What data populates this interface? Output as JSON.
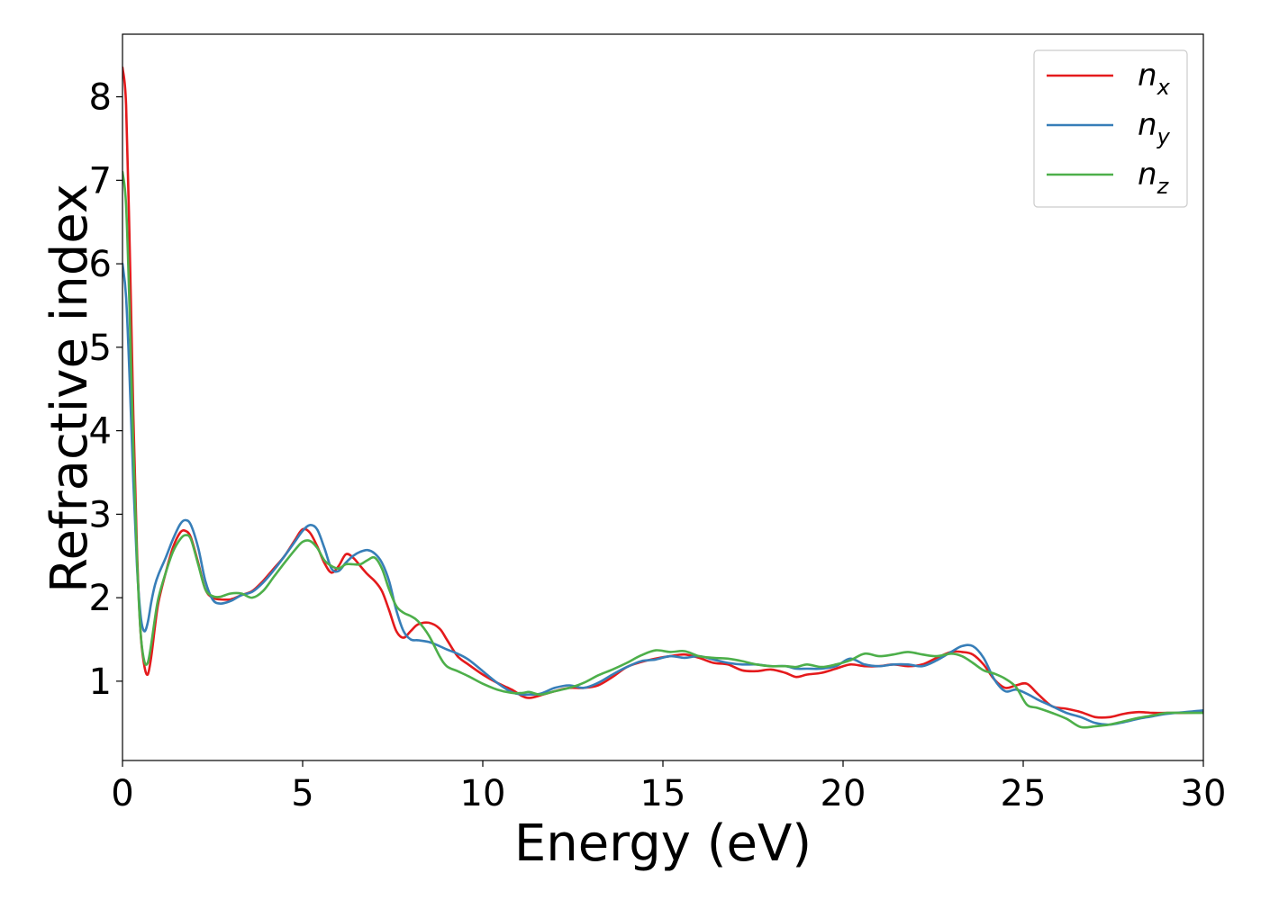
{
  "chart_data": {
    "type": "line",
    "title": "",
    "xlabel": "Energy (eV)",
    "ylabel": "Refractive index",
    "xlim": [
      0,
      30
    ],
    "ylim": [
      0.05,
      8.75
    ],
    "xticks": [
      0,
      5,
      10,
      15,
      20,
      25,
      30
    ],
    "yticks": [
      1,
      2,
      3,
      4,
      5,
      6,
      7,
      8
    ],
    "grid": false,
    "legend_position": "top-right",
    "series": [
      {
        "name": "n",
        "subscript": "x",
        "color": "#e41a1c",
        "x": [
          0,
          0.1,
          0.2,
          0.3,
          0.4,
          0.5,
          0.6,
          0.7,
          0.8,
          0.9,
          1.0,
          1.2,
          1.4,
          1.6,
          1.75,
          1.9,
          2.1,
          2.3,
          2.5,
          2.7,
          3.0,
          3.3,
          3.6,
          3.9,
          4.2,
          4.5,
          4.8,
          5.0,
          5.2,
          5.4,
          5.6,
          5.8,
          6.0,
          6.2,
          6.4,
          6.6,
          6.8,
          7.0,
          7.2,
          7.4,
          7.6,
          7.8,
          8.0,
          8.2,
          8.5,
          8.8,
          9.0,
          9.3,
          9.6,
          10.0,
          10.4,
          10.8,
          11.1,
          11.3,
          11.6,
          12.0,
          12.4,
          12.8,
          13.2,
          13.6,
          14.0,
          14.4,
          14.8,
          15.2,
          15.6,
          16.0,
          16.4,
          16.8,
          17.2,
          17.6,
          18.0,
          18.4,
          18.7,
          19.0,
          19.4,
          19.8,
          20.2,
          20.6,
          21.0,
          21.4,
          21.8,
          22.2,
          22.6,
          23.0,
          23.3,
          23.6,
          23.9,
          24.2,
          24.5,
          24.8,
          25.1,
          25.4,
          25.8,
          26.2,
          26.6,
          27.0,
          27.4,
          27.8,
          28.2,
          28.6,
          29.0,
          29.5,
          30.0
        ],
        "y": [
          8.35,
          7.9,
          6.2,
          4.2,
          2.6,
          1.6,
          1.2,
          1.08,
          1.3,
          1.65,
          1.95,
          2.3,
          2.6,
          2.78,
          2.8,
          2.72,
          2.42,
          2.1,
          2.0,
          1.98,
          1.98,
          2.03,
          2.08,
          2.2,
          2.35,
          2.5,
          2.7,
          2.82,
          2.78,
          2.62,
          2.42,
          2.3,
          2.38,
          2.52,
          2.48,
          2.38,
          2.28,
          2.2,
          2.08,
          1.85,
          1.6,
          1.52,
          1.6,
          1.68,
          1.7,
          1.63,
          1.5,
          1.3,
          1.2,
          1.08,
          0.98,
          0.9,
          0.82,
          0.8,
          0.83,
          0.88,
          0.92,
          0.92,
          0.95,
          1.05,
          1.17,
          1.23,
          1.27,
          1.3,
          1.32,
          1.28,
          1.22,
          1.2,
          1.13,
          1.12,
          1.14,
          1.1,
          1.05,
          1.08,
          1.1,
          1.15,
          1.2,
          1.18,
          1.18,
          1.2,
          1.18,
          1.2,
          1.28,
          1.35,
          1.35,
          1.32,
          1.2,
          1.02,
          0.92,
          0.95,
          0.97,
          0.85,
          0.7,
          0.67,
          0.63,
          0.57,
          0.57,
          0.61,
          0.63,
          0.62,
          0.62,
          0.62,
          0.63
        ]
      },
      {
        "name": "n",
        "subscript": "y",
        "color": "#377eb8",
        "x": [
          0,
          0.1,
          0.2,
          0.3,
          0.4,
          0.5,
          0.6,
          0.7,
          0.8,
          0.9,
          1.0,
          1.2,
          1.4,
          1.6,
          1.75,
          1.9,
          2.1,
          2.3,
          2.5,
          2.7,
          3.0,
          3.3,
          3.6,
          3.9,
          4.2,
          4.5,
          4.8,
          5.0,
          5.2,
          5.4,
          5.6,
          5.8,
          6.0,
          6.2,
          6.4,
          6.6,
          6.8,
          7.0,
          7.2,
          7.4,
          7.6,
          7.8,
          8.0,
          8.2,
          8.5,
          8.8,
          9.0,
          9.3,
          9.6,
          10.0,
          10.4,
          10.8,
          11.1,
          11.3,
          11.6,
          12.0,
          12.4,
          12.8,
          13.2,
          13.6,
          14.0,
          14.4,
          14.8,
          15.2,
          15.6,
          16.0,
          16.4,
          16.8,
          17.2,
          17.6,
          18.0,
          18.4,
          18.7,
          19.0,
          19.4,
          19.8,
          20.2,
          20.6,
          21.0,
          21.4,
          21.8,
          22.2,
          22.6,
          23.0,
          23.3,
          23.6,
          23.9,
          24.2,
          24.5,
          24.8,
          25.1,
          25.4,
          25.8,
          26.2,
          26.6,
          27.0,
          27.4,
          27.8,
          28.2,
          28.6,
          29.0,
          29.5,
          30.0
        ],
        "y": [
          6.0,
          5.6,
          4.6,
          3.4,
          2.4,
          1.8,
          1.6,
          1.7,
          1.95,
          2.15,
          2.28,
          2.48,
          2.7,
          2.88,
          2.93,
          2.87,
          2.6,
          2.2,
          1.98,
          1.93,
          1.96,
          2.03,
          2.07,
          2.18,
          2.33,
          2.5,
          2.68,
          2.8,
          2.87,
          2.82,
          2.6,
          2.35,
          2.32,
          2.42,
          2.5,
          2.55,
          2.57,
          2.53,
          2.42,
          2.2,
          1.85,
          1.6,
          1.5,
          1.49,
          1.47,
          1.42,
          1.38,
          1.33,
          1.26,
          1.12,
          0.98,
          0.87,
          0.84,
          0.84,
          0.85,
          0.92,
          0.95,
          0.92,
          0.98,
          1.08,
          1.17,
          1.24,
          1.26,
          1.3,
          1.28,
          1.3,
          1.26,
          1.22,
          1.2,
          1.2,
          1.18,
          1.18,
          1.15,
          1.15,
          1.15,
          1.18,
          1.27,
          1.2,
          1.18,
          1.2,
          1.2,
          1.18,
          1.25,
          1.35,
          1.42,
          1.42,
          1.28,
          1.02,
          0.88,
          0.9,
          0.85,
          0.78,
          0.7,
          0.62,
          0.57,
          0.5,
          0.48,
          0.51,
          0.55,
          0.58,
          0.61,
          0.63,
          0.65
        ]
      },
      {
        "name": "n",
        "subscript": "z",
        "color": "#4daf4a",
        "x": [
          0,
          0.1,
          0.2,
          0.3,
          0.4,
          0.5,
          0.6,
          0.7,
          0.8,
          0.9,
          1.0,
          1.2,
          1.4,
          1.6,
          1.75,
          1.9,
          2.1,
          2.3,
          2.5,
          2.7,
          3.0,
          3.3,
          3.6,
          3.9,
          4.2,
          4.5,
          4.8,
          5.0,
          5.2,
          5.4,
          5.6,
          5.8,
          6.0,
          6.2,
          6.4,
          6.6,
          6.8,
          7.0,
          7.2,
          7.4,
          7.6,
          7.8,
          8.0,
          8.2,
          8.5,
          8.8,
          9.0,
          9.3,
          9.6,
          10.0,
          10.4,
          10.8,
          11.1,
          11.3,
          11.6,
          12.0,
          12.4,
          12.8,
          13.2,
          13.6,
          14.0,
          14.4,
          14.8,
          15.2,
          15.6,
          16.0,
          16.4,
          16.8,
          17.2,
          17.6,
          18.0,
          18.4,
          18.7,
          19.0,
          19.4,
          19.8,
          20.2,
          20.6,
          21.0,
          21.4,
          21.8,
          22.2,
          22.6,
          23.0,
          23.3,
          23.6,
          23.9,
          24.2,
          24.5,
          24.8,
          25.1,
          25.4,
          25.8,
          26.2,
          26.6,
          27.0,
          27.4,
          27.8,
          28.2,
          28.6,
          29.0,
          29.5,
          30.0
        ],
        "y": [
          7.1,
          6.7,
          5.4,
          3.8,
          2.5,
          1.6,
          1.25,
          1.22,
          1.45,
          1.75,
          2.0,
          2.3,
          2.55,
          2.7,
          2.75,
          2.7,
          2.4,
          2.1,
          2.02,
          2.01,
          2.05,
          2.05,
          2.0,
          2.08,
          2.25,
          2.42,
          2.58,
          2.67,
          2.68,
          2.6,
          2.45,
          2.38,
          2.35,
          2.4,
          2.4,
          2.4,
          2.45,
          2.48,
          2.35,
          2.1,
          1.9,
          1.82,
          1.78,
          1.72,
          1.55,
          1.3,
          1.18,
          1.12,
          1.06,
          0.97,
          0.9,
          0.86,
          0.86,
          0.87,
          0.84,
          0.88,
          0.92,
          0.98,
          1.07,
          1.14,
          1.22,
          1.31,
          1.37,
          1.35,
          1.36,
          1.3,
          1.28,
          1.27,
          1.24,
          1.2,
          1.18,
          1.18,
          1.17,
          1.2,
          1.17,
          1.2,
          1.25,
          1.33,
          1.3,
          1.32,
          1.35,
          1.32,
          1.3,
          1.33,
          1.3,
          1.22,
          1.13,
          1.09,
          1.03,
          0.93,
          0.72,
          0.68,
          0.62,
          0.55,
          0.45,
          0.46,
          0.48,
          0.52,
          0.56,
          0.59,
          0.62,
          0.62,
          0.62
        ]
      }
    ]
  }
}
